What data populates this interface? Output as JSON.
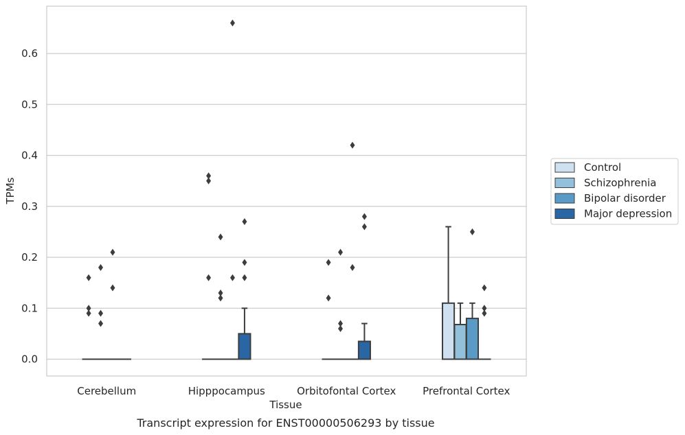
{
  "chart_data": {
    "type": "boxplot",
    "title": "",
    "caption": "Transcript expression for ENST00000506293 by tissue",
    "xlabel": "Tissue",
    "ylabel": "TPMs",
    "ylim": [
      -0.033,
      0.693
    ],
    "yticks": [
      "0.0",
      "0.1",
      "0.2",
      "0.3",
      "0.4",
      "0.5",
      "0.6"
    ],
    "grid": "horizontal",
    "legend_position": "right",
    "categories": [
      "Cerebellum",
      "Hipppocampus",
      "Orbitofontal Cortex",
      "Prefrontal Cortex"
    ],
    "series": [
      {
        "name": "Control",
        "color": "#cfe0f0",
        "boxes": [
          {
            "q1": 0,
            "median": 0,
            "q3": 0,
            "whisker_low": 0,
            "whisker_high": 0,
            "outliers": [
              0.16,
              0.1,
              0.09
            ]
          },
          {
            "q1": 0,
            "median": 0,
            "q3": 0,
            "whisker_low": 0,
            "whisker_high": 0,
            "outliers": [
              0.36,
              0.35,
              0.16
            ]
          },
          {
            "q1": 0,
            "median": 0,
            "q3": 0,
            "whisker_low": 0,
            "whisker_high": 0,
            "outliers": [
              0.19,
              0.12
            ]
          },
          {
            "q1": 0,
            "median": 0,
            "q3": 0.11,
            "whisker_low": 0,
            "whisker_high": 0.26,
            "outliers": []
          }
        ]
      },
      {
        "name": "Schizophrenia",
        "color": "#93c1dc",
        "boxes": [
          {
            "q1": 0,
            "median": 0,
            "q3": 0,
            "whisker_low": 0,
            "whisker_high": 0,
            "outliers": [
              0.18,
              0.09,
              0.07
            ]
          },
          {
            "q1": 0,
            "median": 0,
            "q3": 0,
            "whisker_low": 0,
            "whisker_high": 0,
            "outliers": [
              0.24,
              0.13,
              0.12
            ]
          },
          {
            "q1": 0,
            "median": 0,
            "q3": 0,
            "whisker_low": 0,
            "whisker_high": 0,
            "outliers": [
              0.21,
              0.07,
              0.06
            ]
          },
          {
            "q1": 0,
            "median": 0,
            "q3": 0.068,
            "whisker_low": 0,
            "whisker_high": 0.11,
            "outliers": []
          }
        ]
      },
      {
        "name": "Bipolar disorder",
        "color": "#5a9ac6",
        "boxes": [
          {
            "q1": 0,
            "median": 0,
            "q3": 0,
            "whisker_low": 0,
            "whisker_high": 0,
            "outliers": [
              0.21,
              0.14
            ]
          },
          {
            "q1": 0,
            "median": 0,
            "q3": 0,
            "whisker_low": 0,
            "whisker_high": 0,
            "outliers": [
              0.66,
              0.16
            ]
          },
          {
            "q1": 0,
            "median": 0,
            "q3": 0,
            "whisker_low": 0,
            "whisker_high": 0,
            "outliers": [
              0.42,
              0.18
            ]
          },
          {
            "q1": 0,
            "median": 0,
            "q3": 0.08,
            "whisker_low": 0,
            "whisker_high": 0.11,
            "outliers": [
              0.25
            ]
          }
        ]
      },
      {
        "name": "Major depression",
        "color": "#2a66a3",
        "boxes": [
          {
            "q1": 0,
            "median": 0,
            "q3": 0,
            "whisker_low": 0,
            "whisker_high": 0,
            "outliers": []
          },
          {
            "q1": 0,
            "median": 0,
            "q3": 0.05,
            "whisker_low": 0,
            "whisker_high": 0.1,
            "outliers": [
              0.27,
              0.19,
              0.16
            ]
          },
          {
            "q1": 0,
            "median": 0,
            "q3": 0.035,
            "whisker_low": 0,
            "whisker_high": 0.07,
            "outliers": [
              0.28,
              0.26
            ]
          },
          {
            "q1": 0,
            "median": 0,
            "q3": 0,
            "whisker_low": 0,
            "whisker_high": 0,
            "outliers": [
              0.14,
              0.1,
              0.09
            ]
          }
        ]
      }
    ]
  }
}
